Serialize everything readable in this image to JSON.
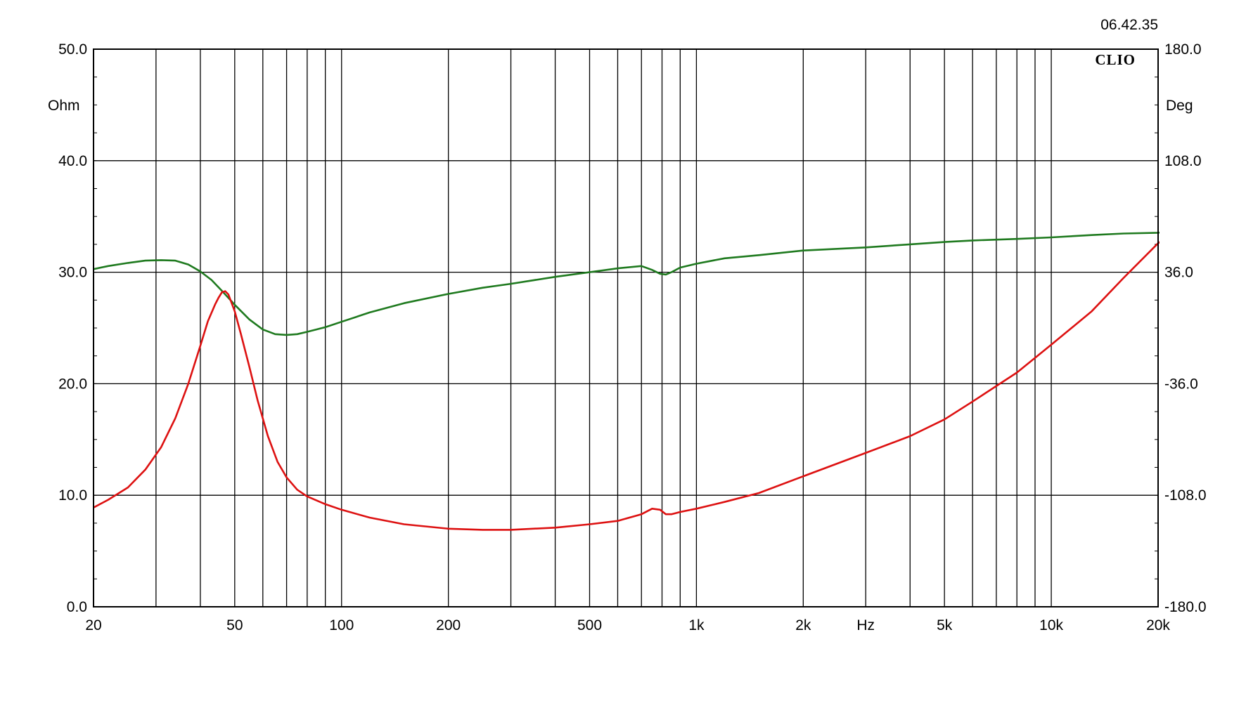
{
  "timestamp": "06.42.35",
  "brand": "CLIO",
  "chart_data": {
    "type": "line",
    "x_scale": "log",
    "xlim": [
      20,
      20000
    ],
    "xlabel": "Hz",
    "x_ticks": [
      {
        "value": 20,
        "label": "20"
      },
      {
        "value": 50,
        "label": "50"
      },
      {
        "value": 100,
        "label": "100"
      },
      {
        "value": 200,
        "label": "200"
      },
      {
        "value": 500,
        "label": "500"
      },
      {
        "value": 1000,
        "label": "1k"
      },
      {
        "value": 2000,
        "label": "2k"
      },
      {
        "value": 5000,
        "label": "5k"
      },
      {
        "value": 10000,
        "label": "10k"
      },
      {
        "value": 20000,
        "label": "20k"
      }
    ],
    "ylabel_left": "Ohm",
    "ylim_left": [
      0,
      50
    ],
    "y_ticks_left": [
      "0.0",
      "10.0",
      "20.0",
      "30.0",
      "40.0",
      "50.0"
    ],
    "ylabel_right": "Deg",
    "ylim_right": [
      -180,
      180
    ],
    "y_ticks_right": [
      "-180.0",
      "-108.0",
      "-36.0",
      "36.0",
      "108.0",
      "180.0"
    ],
    "grid": true,
    "series": [
      {
        "axis": "left",
        "color": "#dd1111",
        "x": [
          20,
          22,
          25,
          28,
          31,
          34,
          37,
          40,
          42,
          44,
          45,
          46,
          47,
          48,
          50,
          52,
          55,
          58,
          62,
          66,
          70,
          75,
          80,
          90,
          100,
          120,
          150,
          200,
          250,
          300,
          400,
          500,
          600,
          700,
          750,
          790,
          820,
          850,
          900,
          1000,
          1200,
          1500,
          2000,
          3000,
          4000,
          5000,
          6000,
          8000,
          10000,
          13000,
          16000,
          20000,
          22000
        ],
        "values": [
          8.9,
          9.6,
          10.7,
          12.3,
          14.3,
          16.9,
          20.0,
          23.4,
          25.6,
          27.1,
          27.7,
          28.2,
          28.3,
          28.0,
          26.5,
          24.5,
          21.5,
          18.5,
          15.3,
          13.0,
          11.6,
          10.5,
          9.9,
          9.2,
          8.7,
          8.0,
          7.4,
          7.0,
          6.9,
          6.9,
          7.1,
          7.4,
          7.7,
          8.3,
          8.8,
          8.7,
          8.3,
          8.3,
          8.5,
          8.8,
          9.4,
          10.2,
          11.7,
          13.8,
          15.3,
          16.8,
          18.4,
          21.0,
          23.5,
          26.5,
          29.5,
          32.6,
          33.5
        ]
      },
      {
        "axis": "right",
        "color": "#1f7a1f",
        "x": [
          20,
          22,
          25,
          28,
          31,
          34,
          37,
          40,
          43,
          46,
          50,
          55,
          60,
          65,
          70,
          75,
          80,
          90,
          100,
          120,
          150,
          200,
          250,
          300,
          400,
          500,
          600,
          700,
          750,
          790,
          820,
          850,
          900,
          1000,
          1200,
          1500,
          2000,
          3000,
          4000,
          5000,
          6000,
          8000,
          10000,
          13000,
          16000,
          20000,
          22000
        ],
        "values": [
          38,
          40,
          42,
          43.5,
          43.8,
          43.5,
          41,
          36.5,
          31,
          24,
          15,
          5.5,
          -1,
          -4,
          -4.5,
          -4,
          -2.5,
          0.5,
          4,
          10,
          16,
          22,
          26,
          28.5,
          33,
          36,
          38.5,
          40,
          37.5,
          35,
          34.5,
          36,
          39,
          41.5,
          45,
          47,
          50,
          52,
          54,
          55.5,
          56.5,
          57.5,
          58.5,
          60,
          61,
          61.5,
          62.5
        ]
      }
    ]
  }
}
